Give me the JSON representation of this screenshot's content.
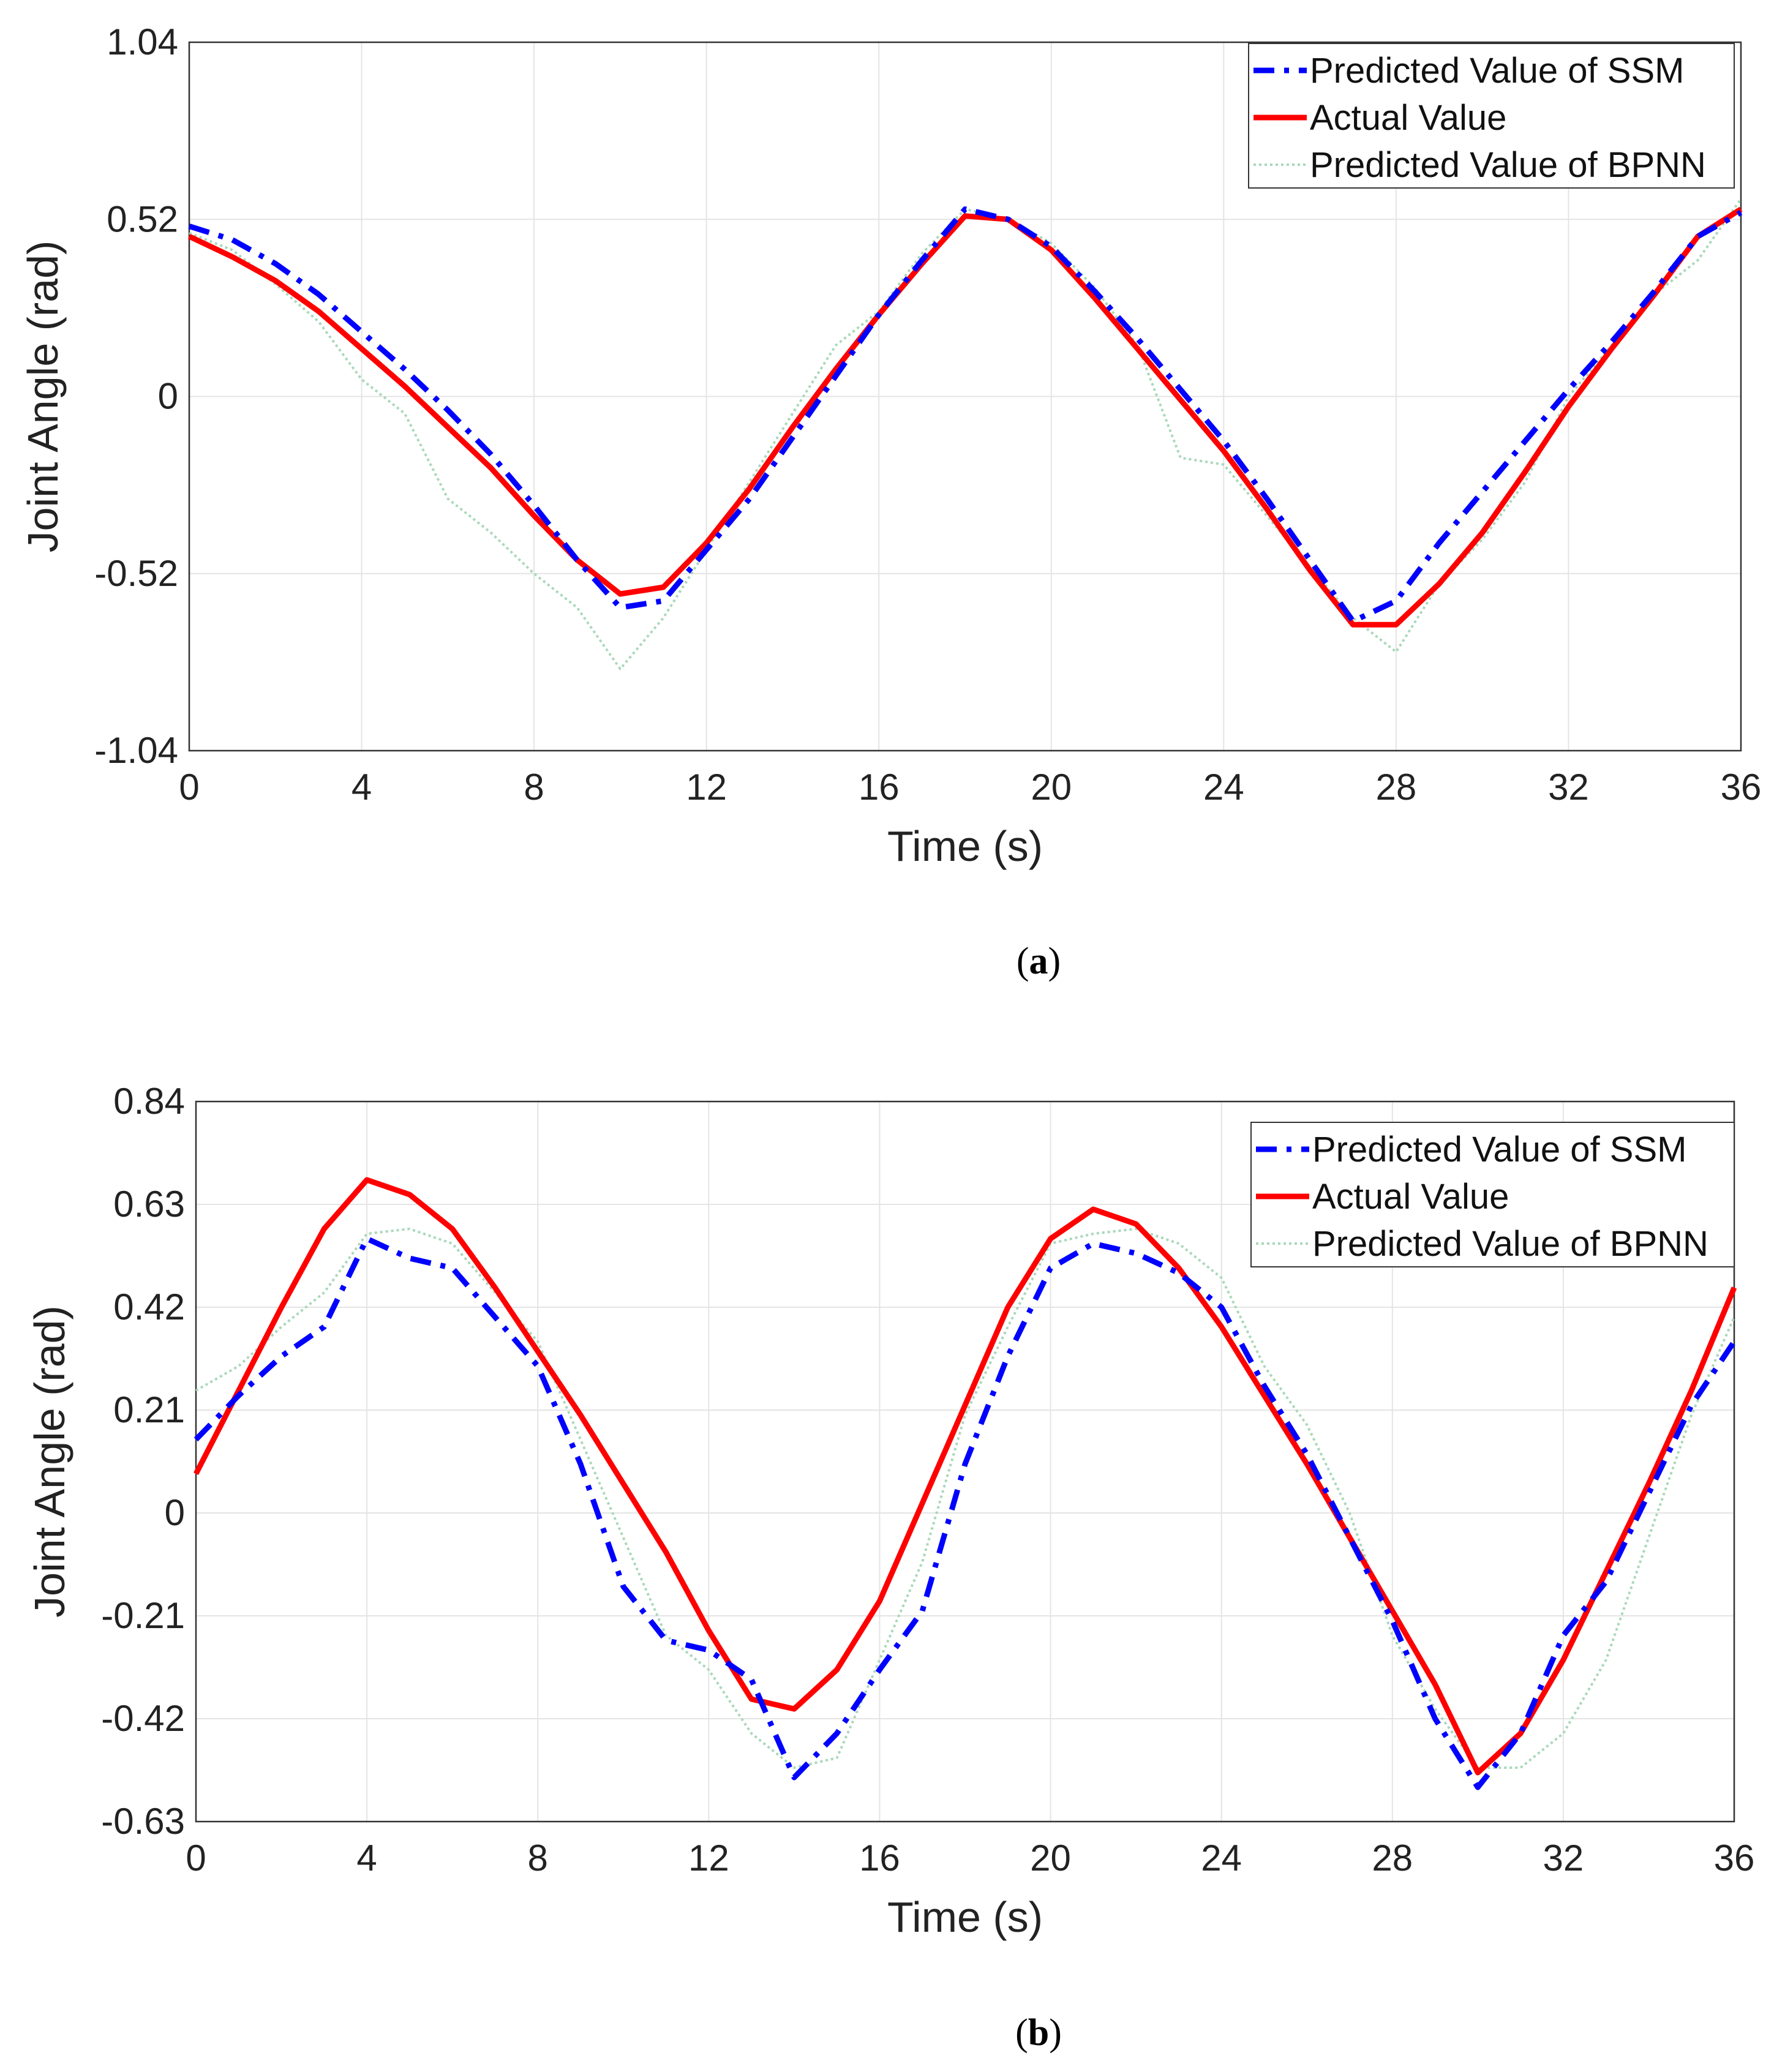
{
  "chart_data": [
    {
      "type": "line",
      "caption": "a",
      "xlabel": "Time (s)",
      "ylabel": "Joint Angle (rad)",
      "xlim": [
        0,
        36
      ],
      "ylim": [
        -1.04,
        1.04
      ],
      "xticks": [
        0,
        4,
        8,
        12,
        16,
        20,
        24,
        28,
        32,
        36
      ],
      "yticks": [
        -1.04,
        -0.52,
        0,
        0.52,
        1.04
      ],
      "ytick_labels": [
        "-1.04",
        "-0.52",
        "0",
        "0.52",
        "1.04"
      ],
      "grid": true,
      "legend_position": "top-right",
      "x": [
        0,
        1,
        2,
        3,
        4,
        5,
        6,
        7,
        8,
        9,
        10,
        11,
        12,
        13,
        14,
        15,
        16,
        17,
        18,
        19,
        20,
        21,
        22,
        23,
        24,
        25,
        26,
        27,
        28,
        29,
        30,
        31,
        32,
        33,
        34,
        35,
        36
      ],
      "series": [
        {
          "name": "Predicted Value of SSM",
          "color": "#0000ff",
          "style": "dash-dot",
          "values": [
            0.5,
            0.46,
            0.39,
            0.3,
            0.19,
            0.08,
            -0.04,
            -0.17,
            -0.32,
            -0.48,
            -0.62,
            -0.6,
            -0.45,
            -0.3,
            -0.12,
            0.06,
            0.24,
            0.4,
            0.55,
            0.52,
            0.44,
            0.31,
            0.17,
            0.02,
            -0.13,
            -0.3,
            -0.48,
            -0.66,
            -0.6,
            -0.43,
            -0.28,
            -0.13,
            0.02,
            0.16,
            0.31,
            0.47,
            0.54
          ]
        },
        {
          "name": "Actual Value",
          "color": "#ff0000",
          "style": "solid",
          "values": [
            0.47,
            0.41,
            0.34,
            0.25,
            0.14,
            0.03,
            -0.09,
            -0.21,
            -0.35,
            -0.48,
            -0.58,
            -0.56,
            -0.43,
            -0.27,
            -0.09,
            0.08,
            0.24,
            0.39,
            0.53,
            0.52,
            0.43,
            0.29,
            0.14,
            -0.01,
            -0.16,
            -0.33,
            -0.51,
            -0.67,
            -0.67,
            -0.55,
            -0.4,
            -0.22,
            -0.03,
            0.14,
            0.3,
            0.47,
            0.55
          ]
        },
        {
          "name": "Predicted Value of BPNN",
          "color": "#a8d8b9",
          "style": "dotted",
          "values": [
            0.48,
            0.43,
            0.33,
            0.22,
            0.05,
            -0.05,
            -0.3,
            -0.4,
            -0.52,
            -0.62,
            -0.8,
            -0.65,
            -0.45,
            -0.25,
            -0.05,
            0.15,
            0.25,
            0.42,
            0.55,
            0.52,
            0.45,
            0.32,
            0.15,
            -0.18,
            -0.2,
            -0.35,
            -0.5,
            -0.65,
            -0.75,
            -0.55,
            -0.42,
            -0.25,
            0.0,
            0.15,
            0.3,
            0.4,
            0.58
          ]
        }
      ]
    },
    {
      "type": "line",
      "caption": "b",
      "xlabel": "Time (s)",
      "ylabel": "Joint Angle (rad)",
      "xlim": [
        0,
        36
      ],
      "ylim": [
        -0.63,
        0.84
      ],
      "xticks": [
        0,
        4,
        8,
        12,
        16,
        20,
        24,
        28,
        32,
        36
      ],
      "yticks": [
        -0.63,
        -0.42,
        -0.21,
        0,
        0.21,
        0.42,
        0.63,
        0.84
      ],
      "ytick_labels": [
        "-0.63",
        "-0.42",
        "-0.21",
        "0",
        "0.21",
        "0.42",
        "0.63",
        "0.84"
      ],
      "grid": true,
      "legend_position": "top-right",
      "x": [
        0,
        1,
        2,
        3,
        4,
        5,
        6,
        7,
        8,
        9,
        10,
        11,
        12,
        13,
        14,
        15,
        16,
        17,
        18,
        19,
        20,
        21,
        22,
        23,
        24,
        25,
        26,
        27,
        28,
        29,
        30,
        31,
        32,
        33,
        34,
        35,
        36
      ],
      "series": [
        {
          "name": "Predicted Value of SSM",
          "color": "#0000ff",
          "style": "dash-dot",
          "values": [
            0.15,
            0.24,
            0.32,
            0.38,
            0.56,
            0.52,
            0.5,
            0.4,
            0.3,
            0.1,
            -0.15,
            -0.26,
            -0.28,
            -0.34,
            -0.54,
            -0.45,
            -0.32,
            -0.2,
            0.1,
            0.32,
            0.5,
            0.55,
            0.53,
            0.49,
            0.42,
            0.26,
            0.12,
            -0.05,
            -0.22,
            -0.42,
            -0.56,
            -0.45,
            -0.25,
            -0.14,
            0.04,
            0.22,
            0.35
          ]
        },
        {
          "name": "Actual Value",
          "color": "#ff0000",
          "style": "solid",
          "values": [
            0.08,
            0.25,
            0.42,
            0.58,
            0.68,
            0.65,
            0.58,
            0.46,
            0.33,
            0.2,
            0.06,
            -0.08,
            -0.24,
            -0.38,
            -0.4,
            -0.32,
            -0.18,
            0.02,
            0.22,
            0.42,
            0.56,
            0.62,
            0.59,
            0.5,
            0.38,
            0.24,
            0.1,
            -0.05,
            -0.2,
            -0.35,
            -0.53,
            -0.45,
            -0.3,
            -0.12,
            0.06,
            0.25,
            0.46
          ]
        },
        {
          "name": "Predicted Value of BPNN",
          "color": "#a8d8b9",
          "style": "dotted",
          "values": [
            0.25,
            0.3,
            0.38,
            0.45,
            0.57,
            0.58,
            0.55,
            0.45,
            0.35,
            0.15,
            -0.05,
            -0.25,
            -0.32,
            -0.45,
            -0.52,
            -0.5,
            -0.3,
            -0.1,
            0.2,
            0.38,
            0.55,
            0.57,
            0.58,
            0.55,
            0.48,
            0.3,
            0.18,
            0.0,
            -0.25,
            -0.4,
            -0.52,
            -0.52,
            -0.45,
            -0.3,
            -0.05,
            0.2,
            0.4
          ]
        }
      ]
    }
  ]
}
